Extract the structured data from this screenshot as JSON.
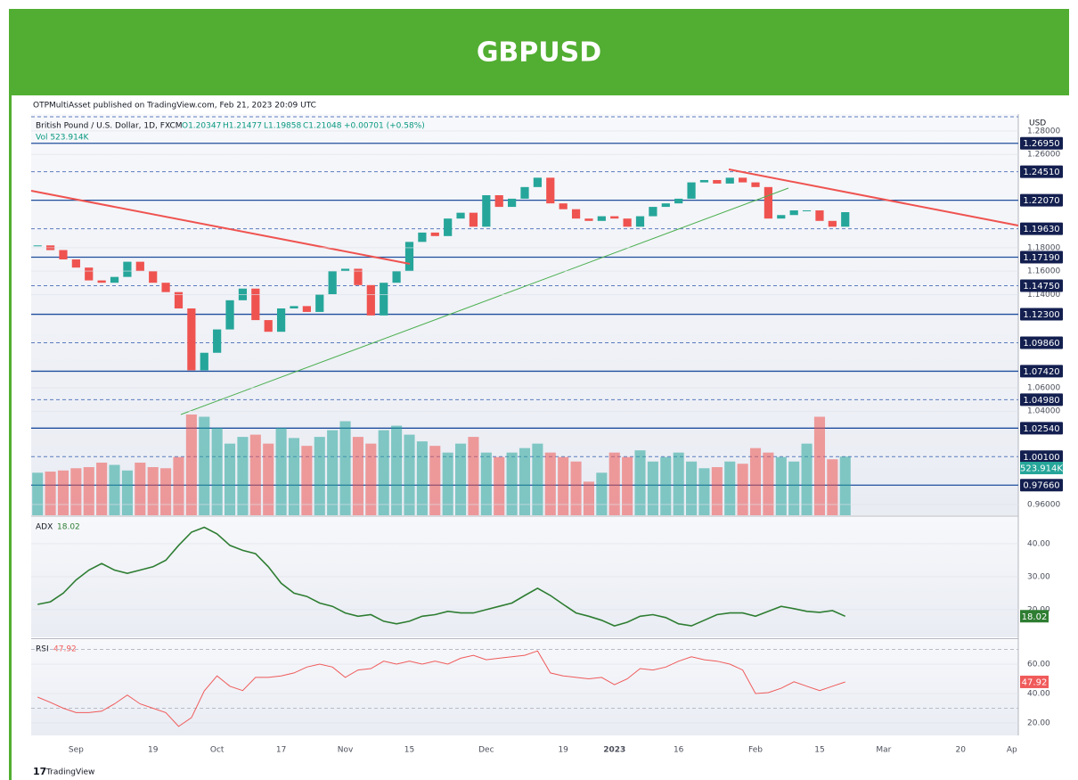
{
  "header": {
    "title": "GBPUSD"
  },
  "chart_data": [
    {
      "type": "candlestick",
      "publisher": "OTPMultiAsset published on TradingView.com, Feb 21, 2023 20:09 UTC",
      "symbol": "British Pound / U.S. Dollar, 1D, FXCM",
      "ohlc": [
        "O1.20347",
        "H1.21477",
        "L1.19858",
        "C1.21048",
        "+0.00701 (+0.58%)"
      ],
      "volume_legend": "Vol 523.914K",
      "volume_label": "523.914K",
      "currency": "USD",
      "footer": "TradingView",
      "up_color": "#26a69a",
      "down_color": "#ef5350",
      "categories": [
        null,
        null,
        null,
        "Sep",
        null,
        null,
        null,
        null,
        null,
        "19",
        null,
        null,
        null,
        null,
        "Oct",
        null,
        null,
        null,
        null,
        "17",
        null,
        null,
        null,
        null,
        "Nov",
        null,
        null,
        null,
        null,
        "15",
        null,
        null,
        null,
        null,
        null,
        "Dec",
        null,
        null,
        null,
        null,
        null,
        "19",
        null,
        null,
        null,
        "2023",
        null,
        null,
        null,
        null,
        "16",
        null,
        null,
        null,
        null,
        null,
        "Feb",
        null,
        null,
        null,
        null,
        "15",
        null,
        null,
        null,
        null,
        "Mar",
        null,
        null,
        null,
        null,
        null,
        "20",
        null,
        null,
        null,
        "Ap"
      ],
      "closes": [
        1.182,
        1.178,
        1.17,
        1.163,
        1.152,
        1.15,
        1.155,
        1.168,
        1.16,
        1.15,
        1.142,
        1.128,
        1.075,
        1.09,
        1.11,
        1.135,
        1.145,
        1.118,
        1.108,
        1.128,
        1.13,
        1.125,
        1.14,
        1.16,
        1.162,
        1.148,
        1.122,
        1.15,
        1.16,
        1.185,
        1.193,
        1.19,
        1.205,
        1.21,
        1.198,
        1.225,
        1.215,
        1.222,
        1.232,
        1.24,
        1.218,
        1.213,
        1.205,
        1.203,
        1.207,
        1.205,
        1.198,
        1.207,
        1.215,
        1.218,
        1.222,
        1.236,
        1.238,
        1.235,
        1.24,
        1.236,
        1.232,
        1.205,
        1.208,
        1.212,
        1.212,
        1.203,
        1.198,
        1.21048,
        null,
        null,
        null,
        null,
        null,
        null,
        null,
        null,
        null,
        null,
        null,
        null,
        null
      ],
      "volumes": [
        380,
        390,
        400,
        420,
        430,
        470,
        450,
        400,
        470,
        430,
        420,
        520,
        900,
        880,
        780,
        640,
        700,
        720,
        640,
        780,
        690,
        620,
        700,
        760,
        840,
        700,
        640,
        760,
        800,
        720,
        660,
        620,
        560,
        640,
        700,
        560,
        520,
        560,
        600,
        640,
        560,
        520,
        480,
        300,
        380,
        560,
        520,
        580,
        480,
        520,
        560,
        480,
        420,
        430,
        480,
        460,
        600,
        560,
        520,
        480,
        640,
        880,
        500,
        523.914,
        null,
        null,
        null,
        null,
        null,
        null,
        null,
        null,
        null,
        null,
        null,
        null,
        null
      ],
      "ylim": [
        0.9508,
        1.2945
      ],
      "yticks": [
        {
          "value": 1.28,
          "label": "1.28000"
        },
        {
          "value": 1.26,
          "label": "1.26000"
        },
        {
          "value": 1.18,
          "label": "1.18000"
        },
        {
          "value": 1.16,
          "label": "1.16000"
        },
        {
          "value": 1.14,
          "label": "1.14000"
        },
        {
          "value": 1.06,
          "label": "1.06000"
        },
        {
          "value": 1.04,
          "label": "1.04000"
        },
        {
          "value": 0.96,
          "label": "0.96000"
        }
      ],
      "levels": [
        {
          "value": 1.2695,
          "label": "1.26950",
          "style": "solid"
        },
        {
          "value": 1.2451,
          "label": "1.24510",
          "style": "dashed"
        },
        {
          "value": 1.2207,
          "label": "1.22070",
          "style": "solid"
        },
        {
          "value": 1.1963,
          "label": "1.19630",
          "style": "dashed"
        },
        {
          "value": 1.1719,
          "label": "1.17190",
          "style": "solid"
        },
        {
          "value": 1.1475,
          "label": "1.14750",
          "style": "dashed"
        },
        {
          "value": 1.123,
          "label": "1.12300",
          "style": "solid"
        },
        {
          "value": 1.0986,
          "label": "1.09860",
          "style": "dashed"
        },
        {
          "value": 1.0742,
          "label": "1.07420",
          "style": "solid"
        },
        {
          "value": 1.0498,
          "label": "1.04980",
          "style": "dashed"
        },
        {
          "value": 1.0254,
          "label": "1.02540",
          "style": "solid"
        },
        {
          "value": 1.001,
          "label": "1.00100",
          "style": "dashed"
        },
        {
          "value": 0.9766,
          "label": "0.97660",
          "style": "solid"
        }
      ]
    },
    {
      "type": "line",
      "name": "ADX",
      "color": "#2e7d32",
      "values": [
        21.6,
        22.4,
        25,
        29,
        32,
        34,
        32,
        31,
        32,
        33,
        35,
        39.5,
        43.5,
        45,
        43,
        39.5,
        38,
        37,
        33,
        28,
        25,
        24,
        22,
        21,
        19,
        18,
        18.5,
        16.5,
        15.7,
        16.5,
        18,
        18.5,
        19.5,
        19,
        19,
        20,
        21,
        22,
        24.3,
        26.5,
        24.3,
        21.6,
        19,
        18,
        16.8,
        15.1,
        16.2,
        18,
        18.5,
        17.6,
        15.7,
        15.1,
        16.8,
        18.5,
        19,
        19,
        18,
        19.5,
        21,
        20.3,
        19.5,
        19.2,
        19.7,
        18.02,
        null,
        null,
        null,
        null,
        null,
        null,
        null,
        null,
        null,
        null,
        null,
        null,
        null
      ],
      "ylim": [
        11.6,
        48.1
      ],
      "yticks": [
        {
          "value": 40,
          "label": "40.00"
        },
        {
          "value": 30,
          "label": "30.00"
        },
        {
          "value": 20,
          "label": "20.00"
        }
      ]
    },
    {
      "type": "line",
      "name": "RSI",
      "color": "#f05a5a",
      "values": [
        37.6,
        34,
        30,
        27,
        27,
        28,
        33,
        39,
        33,
        30,
        27,
        17.6,
        23.6,
        41.8,
        52,
        45,
        42,
        51,
        51,
        52,
        54,
        58,
        60,
        58,
        51,
        56,
        57,
        62,
        60,
        62,
        60,
        62,
        60,
        64,
        66,
        63,
        64,
        65,
        66,
        69,
        54,
        52,
        51,
        50,
        51,
        46,
        50,
        57,
        56,
        58,
        62,
        65,
        63,
        62,
        60,
        56,
        40,
        40.6,
        43.6,
        48,
        45,
        42,
        45,
        47.92,
        null,
        null,
        null,
        null,
        null,
        null,
        null,
        null,
        null,
        null,
        null,
        null,
        null
      ],
      "ylim": [
        11.5,
        76.4
      ],
      "yticks": [
        {
          "value": 60,
          "label": "60.00"
        },
        {
          "value": 40,
          "label": "40.00"
        },
        {
          "value": 20,
          "label": "20.00"
        }
      ],
      "bands": [
        70,
        30
      ]
    }
  ]
}
